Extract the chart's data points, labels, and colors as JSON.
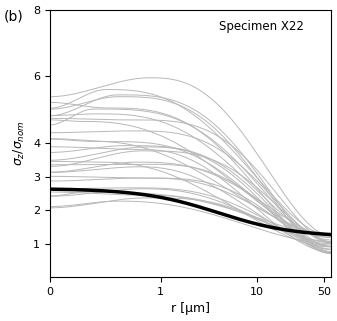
{
  "title": "Specimen X22",
  "xlabel": "r [µm]",
  "ylabel": "$\\sigma_z/\\sigma_{nom}$",
  "panel_label": "(b)",
  "xlim_log": [
    -1.1,
    1.72
  ],
  "ylim": [
    0,
    8
  ],
  "yticks": [
    1,
    2,
    3,
    4,
    6,
    8
  ],
  "gray_color": "#b8b8b8",
  "black_color": "#000000",
  "n_gray_lines": 28,
  "seed": 42,
  "figsize": [
    3.37,
    3.21
  ],
  "dpi": 100
}
